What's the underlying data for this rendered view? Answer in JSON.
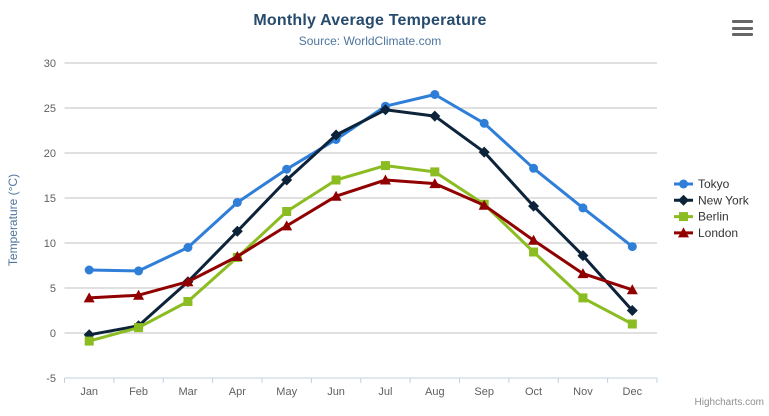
{
  "chart": {
    "title": "Monthly Average Temperature",
    "subtitle": "Source: WorldClimate.com",
    "credit": "Highcharts.com",
    "context_menu_icon": "hamburger-icon",
    "colors": {
      "title": "#274b6d",
      "subtitle": "#4d759e",
      "axis_title": "#4d759e",
      "axis_labels": "#606060",
      "gridline": "#C0C0C0",
      "axis_line": "#C0D0E0",
      "legend_text": "#333333",
      "credit_text": "#909090"
    }
  },
  "chart_data": {
    "type": "line",
    "title": "Monthly Average Temperature",
    "subtitle": "Source: WorldClimate.com",
    "xlabel": "",
    "ylabel": "Temperature (°C)",
    "ylim": [
      -5,
      30
    ],
    "ytick_step": 5,
    "yticks": [
      -5,
      0,
      5,
      10,
      15,
      20,
      25,
      30
    ],
    "grid": true,
    "legend_position": "right",
    "categories": [
      "Jan",
      "Feb",
      "Mar",
      "Apr",
      "May",
      "Jun",
      "Jul",
      "Aug",
      "Sep",
      "Oct",
      "Nov",
      "Dec"
    ],
    "series": [
      {
        "name": "Tokyo",
        "color": "#2f7ed8",
        "marker": "circle",
        "values": [
          7.0,
          6.9,
          9.5,
          14.5,
          18.2,
          21.5,
          25.2,
          26.5,
          23.3,
          18.3,
          13.9,
          9.6
        ]
      },
      {
        "name": "New York",
        "color": "#0d233a",
        "marker": "diamond",
        "values": [
          -0.2,
          0.8,
          5.7,
          11.3,
          17.0,
          22.0,
          24.8,
          24.1,
          20.1,
          14.1,
          8.6,
          2.5
        ]
      },
      {
        "name": "Berlin",
        "color": "#8bbc21",
        "marker": "square",
        "values": [
          -0.9,
          0.6,
          3.5,
          8.4,
          13.5,
          17.0,
          18.6,
          17.9,
          14.3,
          9.0,
          3.9,
          1.0
        ]
      },
      {
        "name": "London",
        "color": "#910000",
        "marker": "triangle",
        "values": [
          3.9,
          4.2,
          5.7,
          8.5,
          11.9,
          15.2,
          17.0,
          16.6,
          14.2,
          10.3,
          6.6,
          4.8
        ]
      }
    ]
  }
}
